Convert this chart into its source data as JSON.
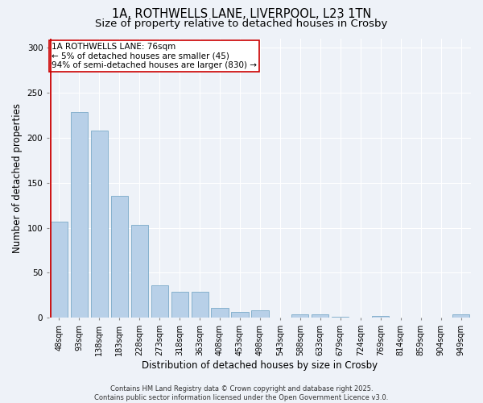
{
  "title_line1": "1A, ROTHWELLS LANE, LIVERPOOL, L23 1TN",
  "title_line2": "Size of property relative to detached houses in Crosby",
  "xlabel": "Distribution of detached houses by size in Crosby",
  "ylabel": "Number of detached properties",
  "categories": [
    "48sqm",
    "93sqm",
    "138sqm",
    "183sqm",
    "228sqm",
    "273sqm",
    "318sqm",
    "363sqm",
    "408sqm",
    "453sqm",
    "498sqm",
    "543sqm",
    "588sqm",
    "633sqm",
    "679sqm",
    "724sqm",
    "769sqm",
    "814sqm",
    "859sqm",
    "904sqm",
    "949sqm"
  ],
  "values": [
    107,
    228,
    208,
    135,
    103,
    36,
    29,
    29,
    11,
    7,
    8,
    0,
    4,
    4,
    1,
    0,
    2,
    0,
    0,
    0,
    4
  ],
  "bar_color": "#b8d0e8",
  "bar_edge_color": "#7aaac8",
  "highlight_line_color": "#cc0000",
  "highlight_bar_index": 0,
  "annotation_text": "1A ROTHWELLS LANE: 76sqm\n← 5% of detached houses are smaller (45)\n94% of semi-detached houses are larger (830) →",
  "annotation_box_edge_color": "#cc0000",
  "annotation_box_face_color": "#ffffff",
  "ylim": [
    0,
    310
  ],
  "yticks": [
    0,
    50,
    100,
    150,
    200,
    250,
    300
  ],
  "background_color": "#eef2f8",
  "axes_background_color": "#eef2f8",
  "grid_color": "#ffffff",
  "footer_text": "Contains HM Land Registry data © Crown copyright and database right 2025.\nContains public sector information licensed under the Open Government Licence v3.0.",
  "title_fontsize": 10.5,
  "subtitle_fontsize": 9.5,
  "tick_fontsize": 7,
  "label_fontsize": 8.5,
  "annotation_fontsize": 7.5,
  "footer_fontsize": 6
}
